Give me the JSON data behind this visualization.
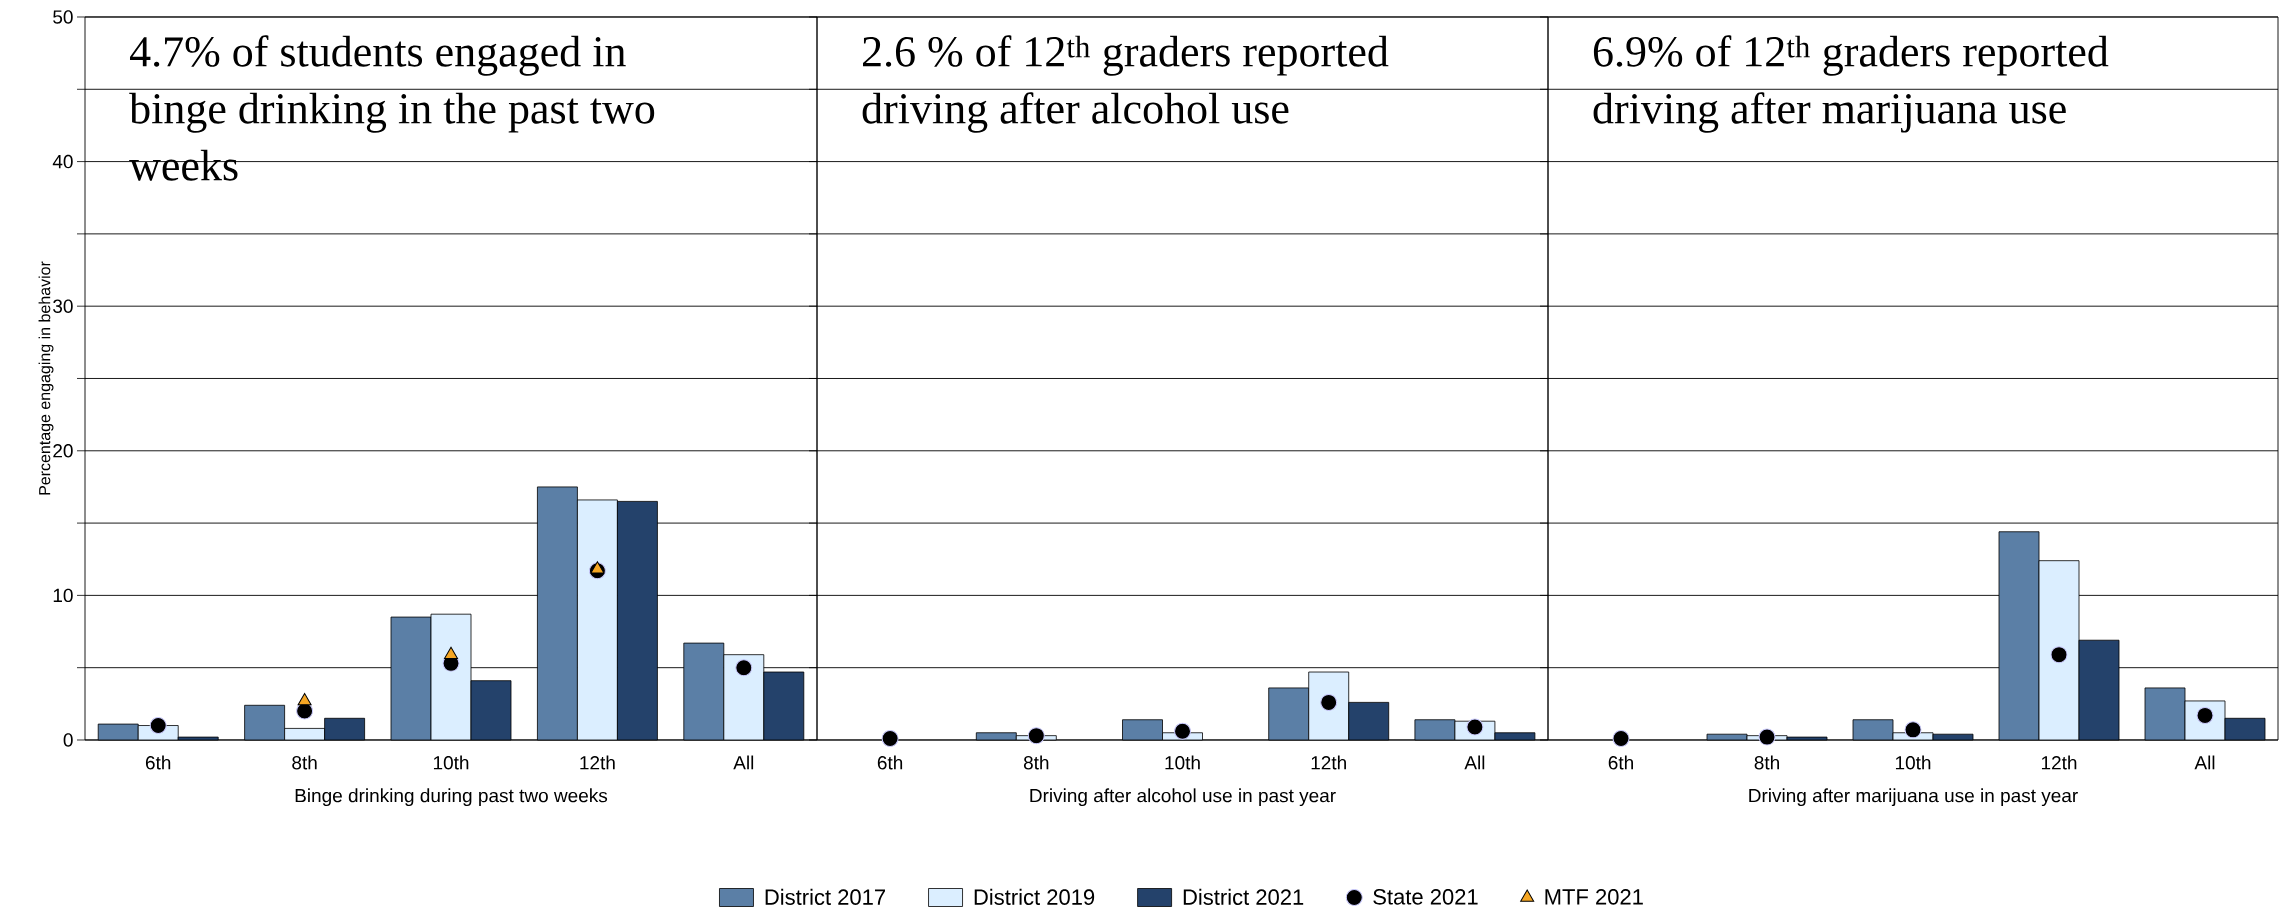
{
  "chart_data": [
    {
      "type": "bar",
      "title": "4.7% of students engaged in binge drinking in the past two weeks",
      "xlabel": "Binge drinking during past two weeks",
      "ylabel": "Percentage engaging in behavior",
      "categories": [
        "6th",
        "8th",
        "10th",
        "12th",
        "All"
      ],
      "ylim": [
        0,
        50
      ],
      "yticks": [
        0,
        {
          "value": 5,
          "label": null
        },
        10,
        {
          "value": 15,
          "label": null
        },
        20,
        {
          "value": 25,
          "label": null
        },
        30,
        {
          "value": 35,
          "label": null
        },
        40,
        {
          "value": 45,
          "label": null
        },
        50
      ],
      "grid": "y",
      "legend": false,
      "series": [
        {
          "color": "#5b7fa6",
          "values": [
            1.1,
            2.4,
            8.5,
            17.5,
            6.7
          ]
        },
        {
          "color": "#dbeeff",
          "values": [
            1.0,
            0.8,
            8.7,
            16.6,
            5.9
          ]
        },
        {
          "color": "#24426b",
          "values": [
            0.2,
            1.5,
            4.1,
            16.5,
            4.7
          ]
        },
        {
          "type": "scatter",
          "marker": "circle",
          "color": "#000000",
          "x": [
            "6th",
            "8th",
            "10th",
            "12th",
            "All"
          ],
          "values": [
            1.0,
            2.0,
            5.3,
            11.7,
            5.0
          ]
        },
        {
          "type": "scatter",
          "marker": "triangle",
          "color": "#f5a623",
          "x": [
            "6th",
            "8th",
            "10th",
            "12th",
            "All"
          ],
          "values": [
            null,
            2.7,
            5.9,
            11.8,
            null
          ]
        }
      ]
    },
    {
      "type": "bar",
      "title": "2.6 % of 12$^{th}$ graders reported driving after alcohol use",
      "xlabel": "Driving after alcohol use in past year",
      "categories": [
        "6th",
        "8th",
        "10th",
        "12th",
        "All"
      ],
      "ylim": [
        0,
        50
      ],
      "yticks": [
        0,
        {
          "value": 5,
          "label": null
        },
        10,
        {
          "value": 15,
          "label": null
        },
        20,
        {
          "value": 25,
          "label": null
        },
        30,
        {
          "value": 35,
          "label": null
        },
        40,
        {
          "value": 45,
          "label": null
        },
        50
      ],
      "grid": "y",
      "tick_labels": "x",
      "legend": "bottom",
      "series": [
        {
          "name": "District 2017",
          "color": "#5b7fa6",
          "values": [
            null,
            0.5,
            1.4,
            3.6,
            1.4
          ]
        },
        {
          "name": "District 2019",
          "color": "#dbeeff",
          "values": [
            null,
            0.3,
            0.5,
            4.7,
            1.3
          ]
        },
        {
          "name": "District 2021",
          "color": "#24426b",
          "values": [
            null,
            null,
            null,
            2.6,
            0.5
          ]
        },
        {
          "name": "State 2021",
          "type": "scatter",
          "marker": "circle",
          "color": "#000000",
          "x": [
            "6th",
            "8th",
            "10th",
            "12th",
            "All"
          ],
          "values": [
            0.1,
            0.3,
            0.6,
            2.6,
            0.9
          ]
        },
        {
          "name": "MTF 2021",
          "type": "scatter",
          "marker": "triangle",
          "color": "#f5a623",
          "x": [
            "6th",
            "8th",
            "10th",
            "12th",
            "All"
          ],
          "values": [
            null,
            null,
            null,
            null,
            null
          ]
        }
      ]
    },
    {
      "type": "bar",
      "title": "6.9% of 12$^{th}$ graders reported driving after marijuana use",
      "xlabel": "Driving after marijuana use in past year",
      "categories": [
        "6th",
        "8th",
        "10th",
        "12th",
        "All"
      ],
      "ylim": [
        0,
        50
      ],
      "yticks": [
        0,
        {
          "value": 5,
          "label": null
        },
        10,
        {
          "value": 15,
          "label": null
        },
        20,
        {
          "value": 25,
          "label": null
        },
        30,
        {
          "value": 35,
          "label": null
        },
        40,
        {
          "value": 45,
          "label": null
        },
        50
      ],
      "grid": "y",
      "tick_labels": "x",
      "legend": false,
      "series": [
        {
          "color": "#5b7fa6",
          "values": [
            null,
            0.4,
            1.4,
            14.4,
            3.6
          ]
        },
        {
          "color": "#dbeeff",
          "values": [
            null,
            0.3,
            0.5,
            12.4,
            2.7
          ]
        },
        {
          "color": "#24426b",
          "values": [
            null,
            0.2,
            0.4,
            6.9,
            1.5
          ]
        },
        {
          "type": "scatter",
          "marker": "circle",
          "color": "#000000",
          "x": [
            "6th",
            "8th",
            "10th",
            "12th",
            "All"
          ],
          "values": [
            0.1,
            0.2,
            0.7,
            5.9,
            1.7
          ]
        },
        {
          "type": "scatter",
          "marker": "triangle",
          "color": "#f5a623",
          "x": [
            "6th",
            "8th",
            "10th",
            "12th",
            "All"
          ],
          "values": [
            null,
            null,
            null,
            null,
            null
          ]
        }
      ]
    }
  ]
}
